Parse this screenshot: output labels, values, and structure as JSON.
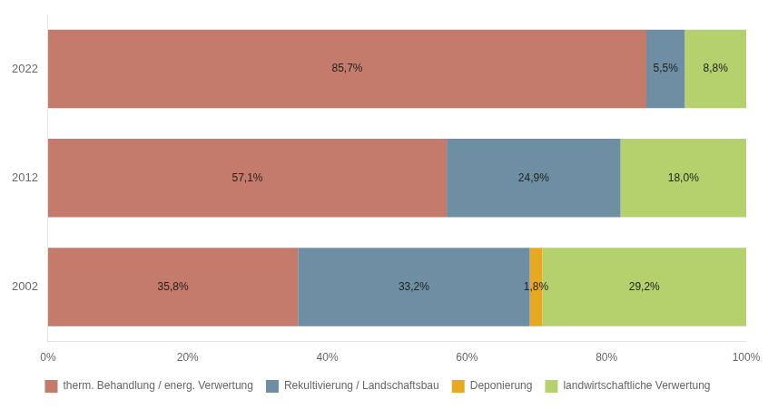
{
  "chart_data": {
    "type": "bar",
    "orientation": "horizontal",
    "stacked": true,
    "categories": [
      "2022",
      "2012",
      "2002"
    ],
    "series": [
      {
        "name": "therm. Behandlung / energ. Verwertung",
        "color": "#c47b6c",
        "values": [
          85.7,
          57.1,
          35.8
        ],
        "value_labels": [
          "85,7%",
          "57,1%",
          "35,8%"
        ]
      },
      {
        "name": "Rekultivierung / Landschaftsbau",
        "color": "#6e8fa3",
        "values": [
          5.5,
          24.9,
          33.2
        ],
        "value_labels": [
          "5,5%",
          "24,9%",
          "33,2%"
        ]
      },
      {
        "name": "Deponierung",
        "color": "#e8a820",
        "values": [
          0.0,
          0.0,
          1.8
        ],
        "value_labels": [
          null,
          null,
          "1,8%"
        ]
      },
      {
        "name": "landwirtschaftliche Verwertung",
        "color": "#b5d16e",
        "values": [
          8.8,
          18.0,
          29.2
        ],
        "value_labels": [
          "8,8%",
          "18,0%",
          "29,2%"
        ]
      }
    ],
    "xlim": [
      0,
      100
    ],
    "xticks": [
      {
        "value": 0,
        "label": "0%"
      },
      {
        "value": 20,
        "label": "20%"
      },
      {
        "value": 40,
        "label": "40%"
      },
      {
        "value": 60,
        "label": "60%"
      },
      {
        "value": 80,
        "label": "80%"
      },
      {
        "value": 100,
        "label": "100%"
      }
    ],
    "grid": false,
    "data_labels": true,
    "legend": "bottom"
  }
}
